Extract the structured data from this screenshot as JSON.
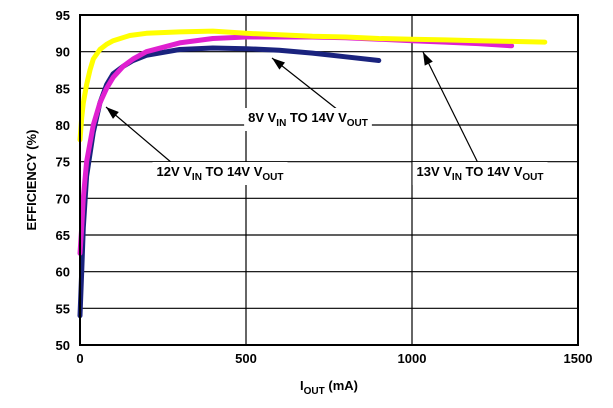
{
  "chart_data": {
    "type": "line",
    "title": "",
    "xlabel": {
      "main": "I",
      "sub": "OUT",
      "rest": " (mA)"
    },
    "ylabel": "EFFICIENCY (%)",
    "xlim": [
      0,
      1500
    ],
    "ylim": [
      50,
      95
    ],
    "xticks": [
      0,
      500,
      1000,
      1500
    ],
    "yticks": [
      50,
      55,
      60,
      65,
      70,
      75,
      80,
      85,
      90,
      95
    ],
    "grid": true,
    "series": [
      {
        "name": "8V VIN TO 14V VOUT",
        "color": "#1a237e",
        "x": [
          0,
          5,
          10,
          20,
          40,
          60,
          80,
          100,
          130,
          160,
          200,
          300,
          400,
          500,
          600,
          700,
          800,
          900
        ],
        "y": [
          54,
          60,
          66,
          73,
          79,
          83,
          85.5,
          87,
          88,
          88.8,
          89.5,
          90.3,
          90.5,
          90.4,
          90.2,
          89.8,
          89.3,
          88.8
        ]
      },
      {
        "name": "12V VIN TO 14V VOUT",
        "color": "#e020d0",
        "x": [
          0,
          5,
          10,
          20,
          40,
          60,
          80,
          100,
          130,
          160,
          200,
          300,
          400,
          500,
          600,
          700,
          800,
          900,
          1000,
          1100,
          1200,
          1300
        ],
        "y": [
          62.5,
          66,
          70,
          75,
          80,
          83,
          85,
          86.5,
          88,
          89,
          90,
          91.2,
          91.8,
          92,
          92,
          92,
          91.9,
          91.7,
          91.5,
          91.3,
          91.1,
          90.8
        ]
      },
      {
        "name": "13V VIN TO 14V VOUT",
        "color": "#ffff00",
        "x": [
          0,
          5,
          10,
          20,
          30,
          40,
          60,
          80,
          100,
          150,
          200,
          300,
          400,
          500,
          600,
          700,
          800,
          900,
          1000,
          1100,
          1200,
          1300,
          1400
        ],
        "y": [
          78,
          81,
          83,
          85.5,
          87.5,
          89,
          90.3,
          91,
          91.5,
          92.2,
          92.5,
          92.7,
          92.8,
          92.5,
          92.3,
          92.1,
          92,
          91.8,
          91.7,
          91.6,
          91.5,
          91.4,
          91.3
        ]
      }
    ],
    "annotations": [
      {
        "series": 0,
        "parts": [
          {
            "t": "8V V"
          },
          {
            "t": "IN",
            "sub": true
          },
          {
            "t": " TO 14V V"
          },
          {
            "t": "OUT",
            "sub": true
          }
        ]
      },
      {
        "series": 1,
        "parts": [
          {
            "t": "12V V"
          },
          {
            "t": "IN",
            "sub": true
          },
          {
            "t": " TO 14V V"
          },
          {
            "t": "OUT",
            "sub": true
          }
        ]
      },
      {
        "series": 2,
        "parts": [
          {
            "t": "13V V"
          },
          {
            "t": "IN",
            "sub": true
          },
          {
            "t": " TO 14V V"
          },
          {
            "t": "OUT",
            "sub": true
          }
        ]
      }
    ]
  }
}
